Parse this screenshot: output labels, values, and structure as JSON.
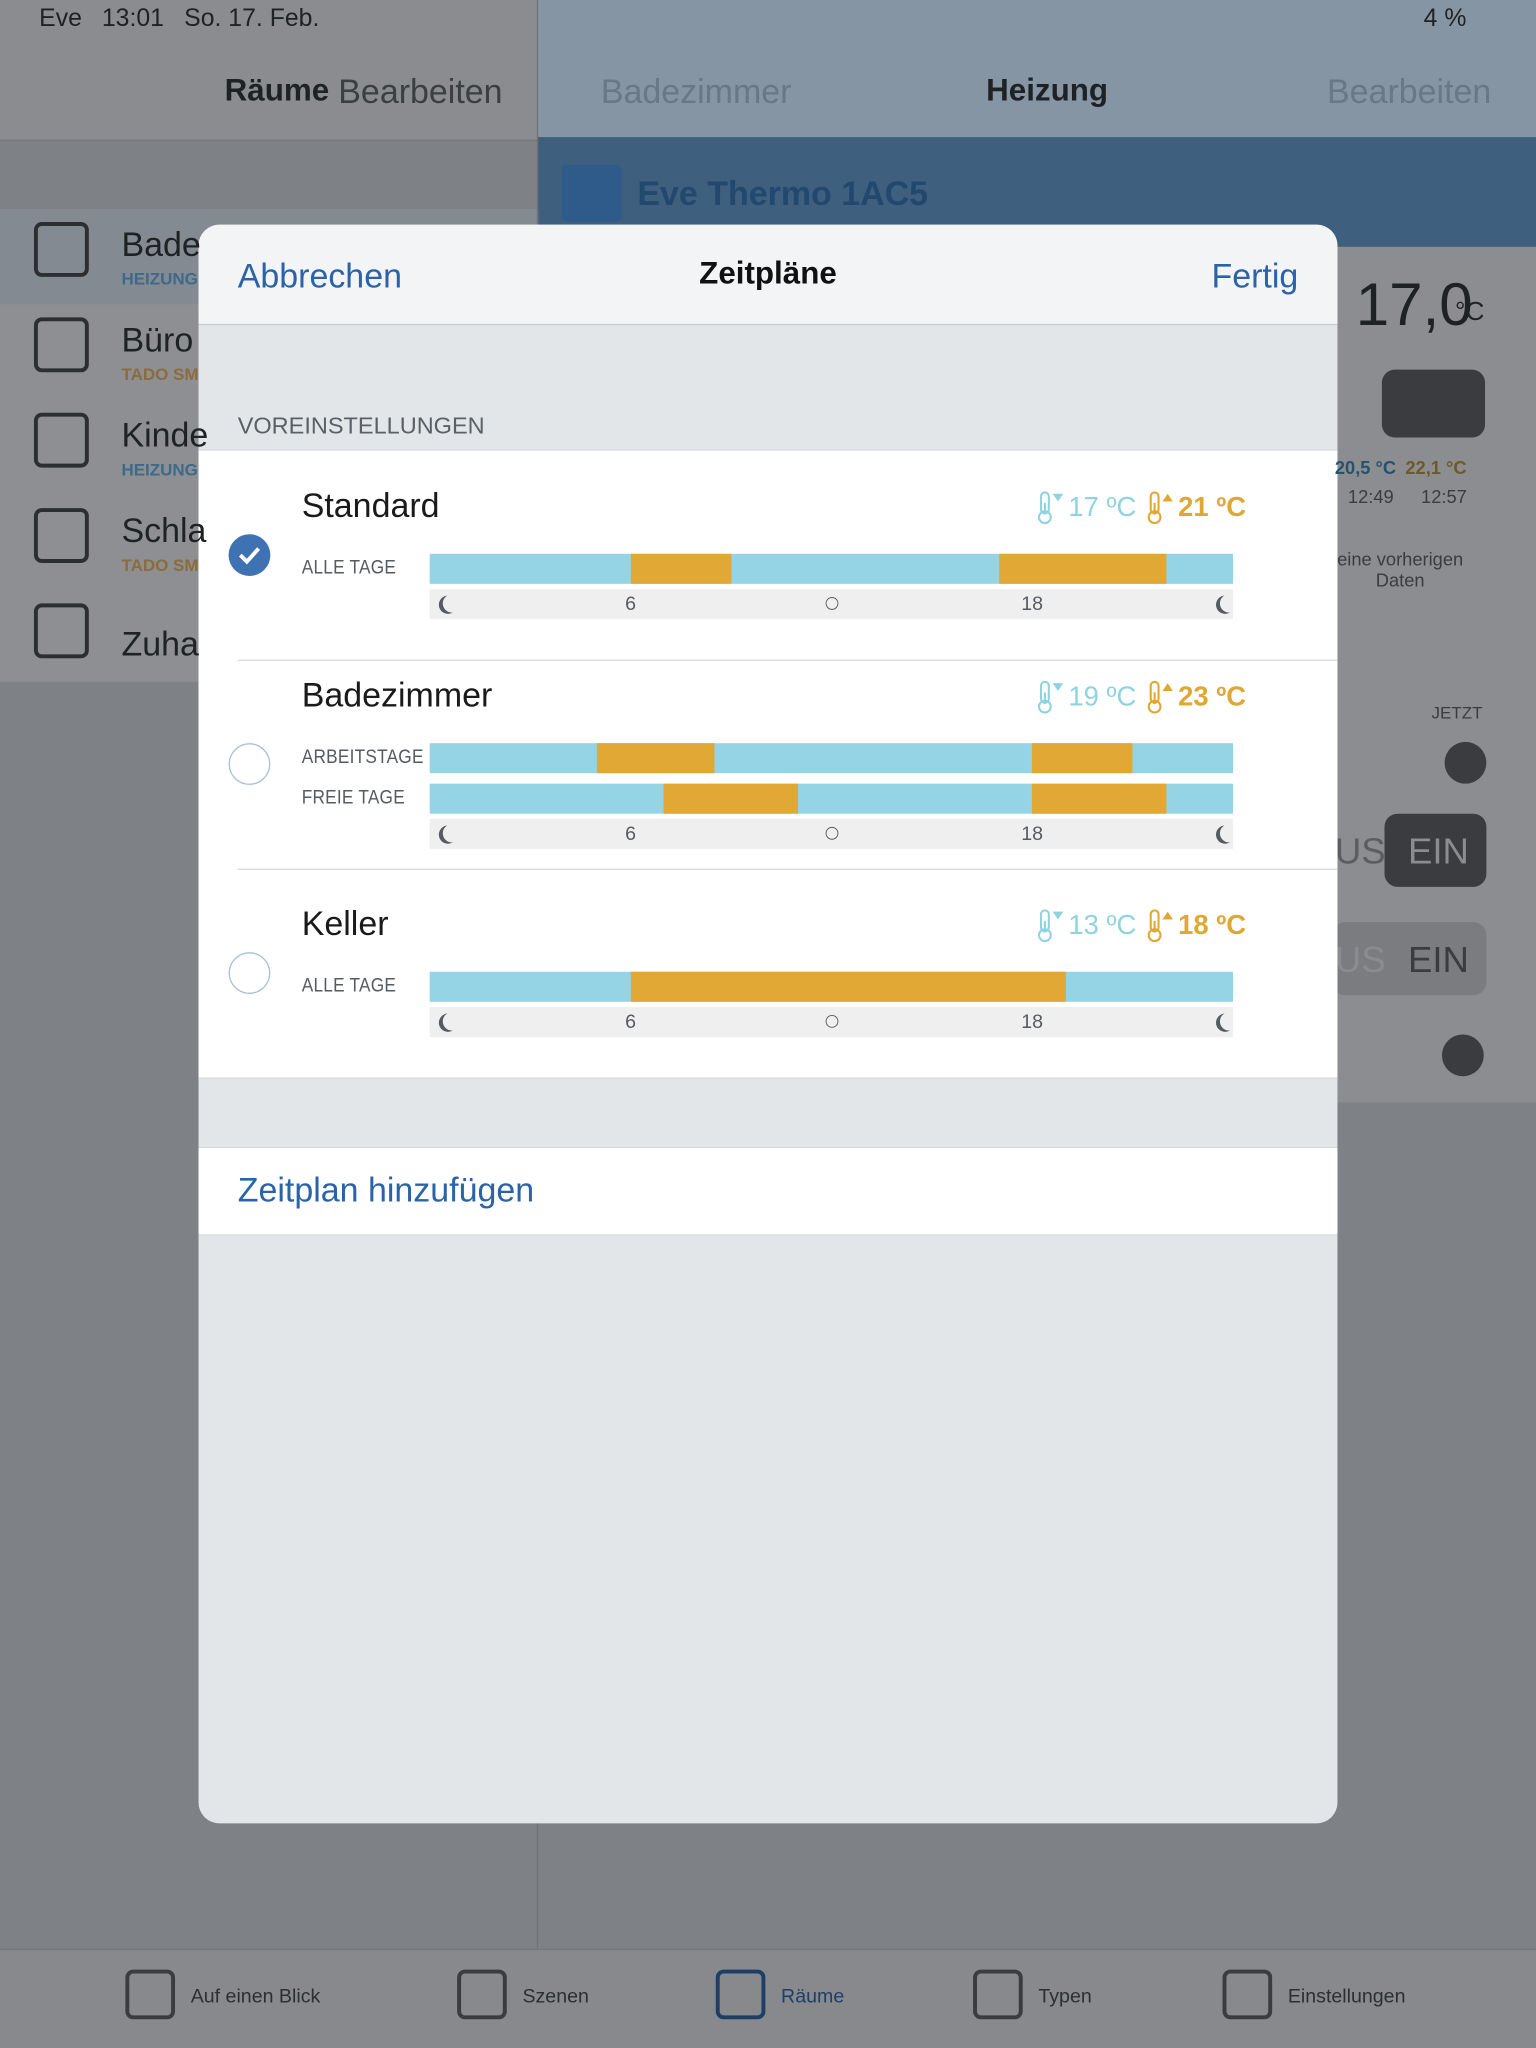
{
  "status_bar": {
    "carrier": "Eve",
    "time": "13:01",
    "date": "So. 17. Feb.",
    "battery": "4 %"
  },
  "sidebar": {
    "title": "Räume",
    "edit": "Bearbeiten",
    "rooms": [
      {
        "name": "Bade",
        "subtitle": "HEIZUNG"
      },
      {
        "name": "Büro",
        "subtitle": "TADO SM"
      },
      {
        "name": "Kinde",
        "subtitle": "HEIZUNG"
      },
      {
        "name": "Schla",
        "subtitle": "TADO SM"
      },
      {
        "name": "Zuha"
      }
    ]
  },
  "detail": {
    "back": "Badezimmer",
    "title": "Heizung",
    "edit": "Bearbeiten",
    "device": "Eve Thermo 1AC5",
    "temperature": "17,0",
    "unit": "°C",
    "history": {
      "low": "20,5 °C",
      "high": "22,1 °C",
      "time_low": "12:49",
      "time_high": "12:57",
      "note": "eine vorherigen Daten",
      "now": "JETZT"
    },
    "toggles": [
      {
        "off": "US",
        "on": "EIN"
      },
      {
        "off": "US",
        "on": "EIN"
      }
    ]
  },
  "modal": {
    "cancel": "Abbrechen",
    "title": "Zeitpläne",
    "done": "Fertig",
    "section": "VOREINSTELLUNGEN",
    "add": "Zeitplan hinzufügen",
    "axis_range": [
      0,
      24
    ],
    "axis_ticks": [
      6,
      18
    ],
    "schedules": [
      {
        "name": "Standard",
        "low": "17 ºC",
        "high": "21 ºC",
        "selected": true,
        "rows": [
          {
            "label": "ALLE TAGE",
            "periods": [
              [
                6,
                9
              ],
              [
                17,
                22
              ]
            ]
          }
        ]
      },
      {
        "name": "Badezimmer",
        "low": "19 ºC",
        "high": "23 ºC",
        "selected": false,
        "rows": [
          {
            "label": "ARBEITSTAGE",
            "periods": [
              [
                5,
                8.5
              ],
              [
                18,
                21
              ]
            ]
          },
          {
            "label": "FREIE TAGE",
            "periods": [
              [
                7,
                11
              ],
              [
                18,
                22
              ]
            ]
          }
        ]
      },
      {
        "name": "Keller",
        "low": "13 ºC",
        "high": "18 ºC",
        "selected": false,
        "rows": [
          {
            "label": "ALLE TAGE",
            "periods": [
              [
                6,
                19
              ]
            ]
          }
        ]
      }
    ]
  },
  "tab_bar": [
    "Auf einen Blick",
    "Szenen",
    "Räume",
    "Typen",
    "Einstellungen"
  ]
}
